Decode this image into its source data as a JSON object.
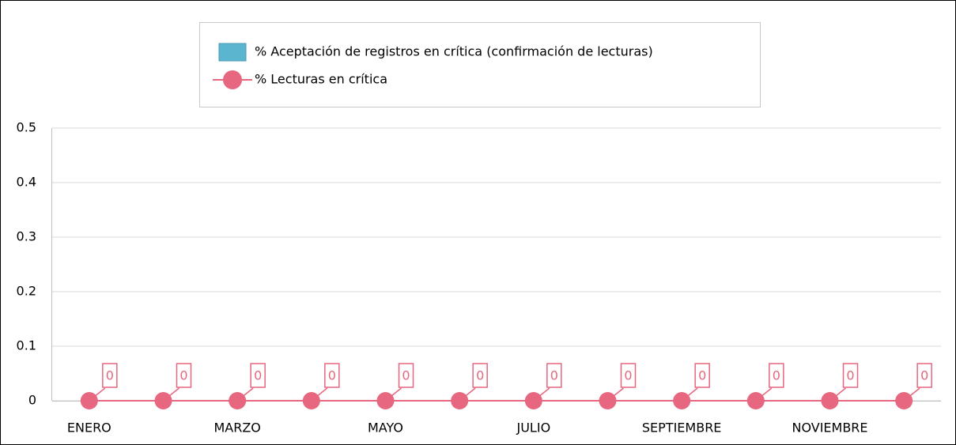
{
  "chart_data": {
    "type": "bar_line",
    "categories": [
      "ENERO",
      null,
      "MARZO",
      null,
      "MAYO",
      null,
      "JULIO",
      null,
      "SEPTIEMBRE",
      null,
      "NOVIEMBRE",
      null
    ],
    "series": [
      {
        "name": "% Aceptación de registros en crítica (confirmación de lecturas)",
        "type": "bar",
        "color": "#5bb5cf",
        "values": [
          0,
          0,
          0,
          0,
          0,
          0,
          0,
          0,
          0,
          0,
          0,
          0
        ]
      },
      {
        "name": "% Lecturas en crítica",
        "type": "line",
        "color": "#e6677f",
        "values": [
          0,
          0,
          0,
          0,
          0,
          0,
          0,
          0,
          0,
          0,
          0,
          0
        ],
        "data_labels": true
      }
    ],
    "ylim": [
      0,
      0.5
    ],
    "yticks": [
      0,
      0.1,
      0.2,
      0.3,
      0.4,
      0.5
    ],
    "grid": true,
    "legend": "top"
  }
}
